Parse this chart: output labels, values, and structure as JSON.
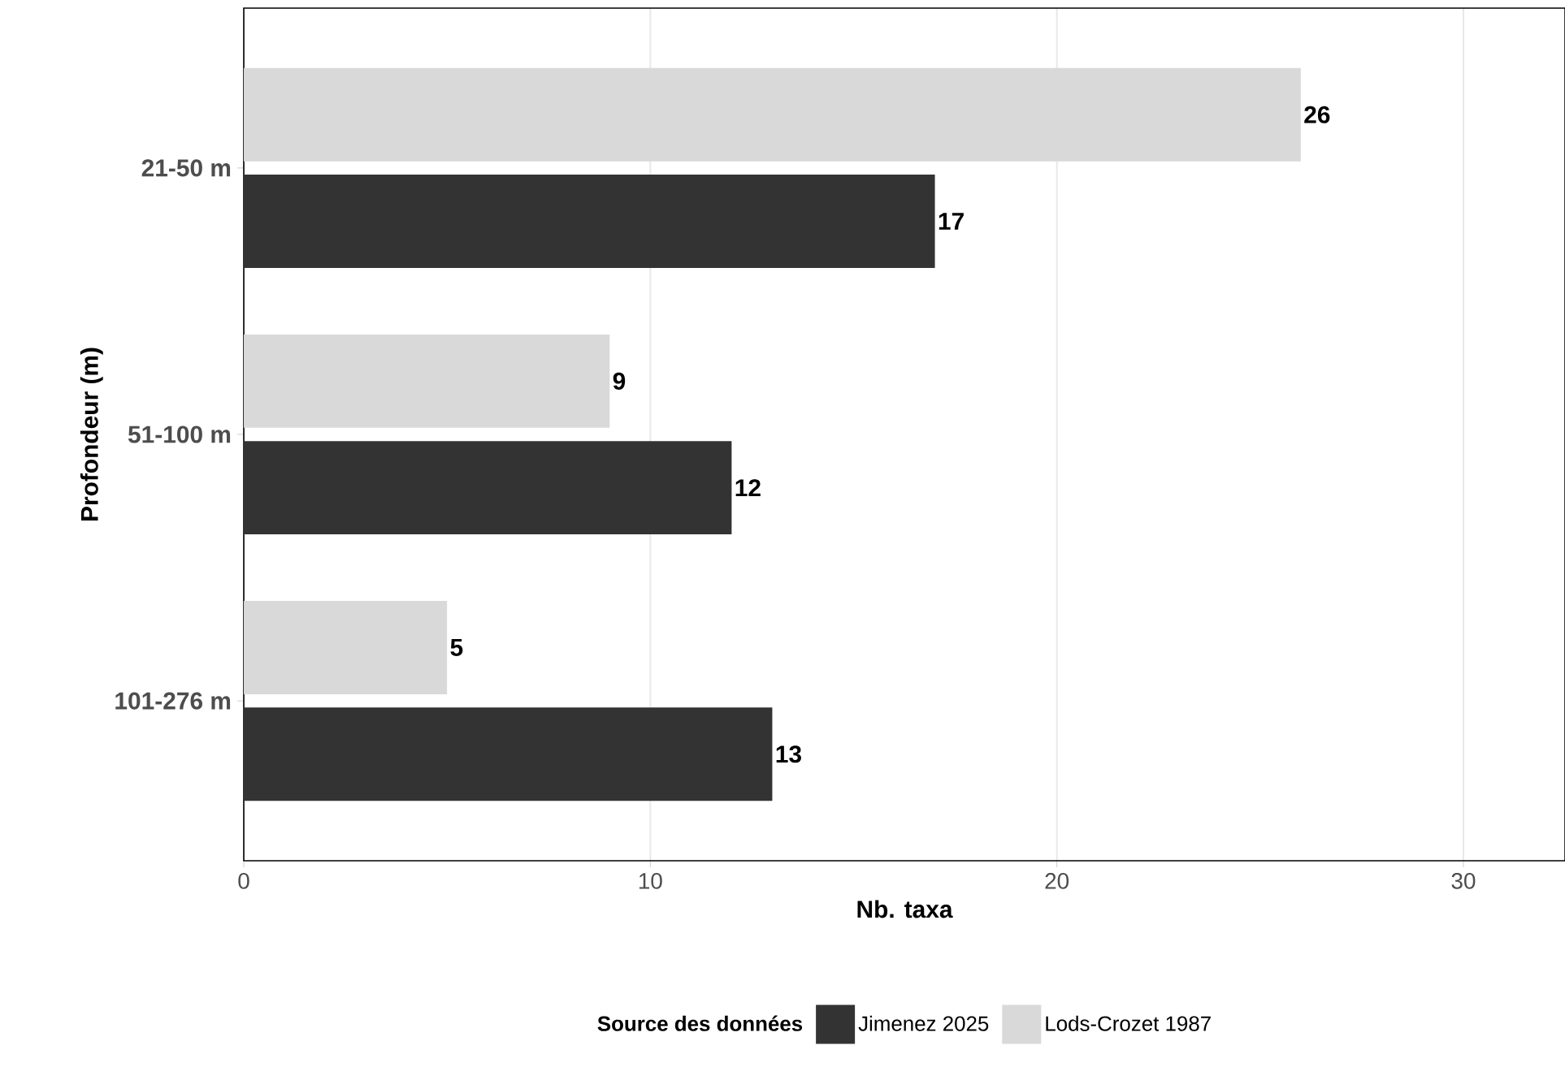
{
  "chart_data": {
    "type": "bar",
    "orientation": "horizontal",
    "categories": [
      "21-50 m",
      "51-100 m",
      "101-276 m"
    ],
    "series": [
      {
        "name": "Jimenez 2025",
        "color": "#333333",
        "values": [
          17,
          12,
          13
        ]
      },
      {
        "name": "Lods-Crozet 1987",
        "color": "#d9d9d9",
        "values": [
          26,
          9,
          5
        ]
      }
    ],
    "xlim": [
      0,
      32.5
    ],
    "xticks": [
      0,
      10,
      20,
      30
    ],
    "xlabel": "Nb. taxa",
    "ylabel": "Profondeur (m)",
    "legend_title": "Source des données",
    "legend": "bottom",
    "grid": "x",
    "data_labels": true
  }
}
